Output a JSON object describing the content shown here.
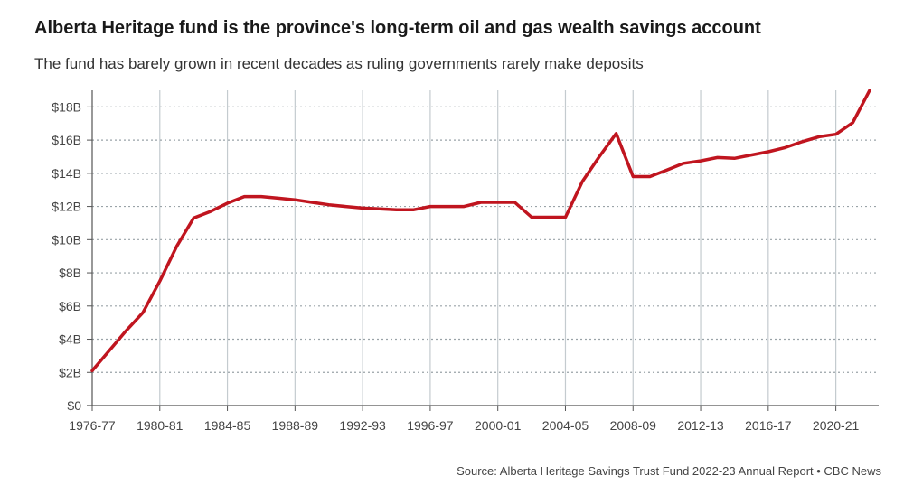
{
  "title": "Alberta Heritage fund is the province's long-term oil and gas wealth savings account",
  "subtitle": "The fund has barely grown in recent decades as ruling governments rarely make deposits",
  "source": "Source: Alberta Heritage Savings Trust Fund 2022-23 Annual Report • CBC News",
  "colors": {
    "line": "#c0151f",
    "grid_h": "#9aa3a8",
    "grid_v": "#c4cbcf",
    "axis": "#555555"
  },
  "chart_data": {
    "type": "line",
    "title": "Alberta Heritage fund is the province's long-term oil and gas wealth savings account",
    "subtitle": "The fund has barely grown in recent decades as ruling governments rarely make deposits",
    "xlabel": "",
    "ylabel": "",
    "ylim": [
      0,
      19
    ],
    "y_ticks": [
      0,
      2,
      4,
      6,
      8,
      10,
      12,
      14,
      16,
      18
    ],
    "y_tick_labels": [
      "$0",
      "$2B",
      "$4B",
      "$6B",
      "$8B",
      "$10B",
      "$12B",
      "$14B",
      "$16B",
      "$18B"
    ],
    "x_ticks": [
      "1976-77",
      "1980-81",
      "1984-85",
      "1988-89",
      "1992-93",
      "1996-97",
      "2000-01",
      "2004-05",
      "2008-09",
      "2012-13",
      "2016-17",
      "2020-21"
    ],
    "grid": true,
    "series": [
      {
        "values": [
          [
            "1976-77",
            2.1
          ],
          [
            "1977-78",
            3.3
          ],
          [
            "1978-79",
            4.5
          ],
          [
            "1979-80",
            5.6
          ],
          [
            "1980-81",
            7.5
          ],
          [
            "1981-82",
            9.6
          ],
          [
            "1982-83",
            11.3
          ],
          [
            "1983-84",
            11.7
          ],
          [
            "1984-85",
            12.2
          ],
          [
            "1985-86",
            12.6
          ],
          [
            "1986-87",
            12.6
          ],
          [
            "1987-88",
            12.5
          ],
          [
            "1988-89",
            12.4
          ],
          [
            "1989-90",
            12.25
          ],
          [
            "1990-91",
            12.1
          ],
          [
            "1991-92",
            12.0
          ],
          [
            "1992-93",
            11.9
          ],
          [
            "1993-94",
            11.85
          ],
          [
            "1994-95",
            11.8
          ],
          [
            "1995-96",
            11.8
          ],
          [
            "1996-97",
            12.0
          ],
          [
            "1997-98",
            12.0
          ],
          [
            "1998-99",
            12.0
          ],
          [
            "1999-00",
            12.25
          ],
          [
            "2000-01",
            12.25
          ],
          [
            "2001-02",
            12.25
          ],
          [
            "2002-03",
            11.35
          ],
          [
            "2003-04",
            11.35
          ],
          [
            "2004-05",
            11.35
          ],
          [
            "2005-06",
            13.5
          ],
          [
            "2006-07",
            15.0
          ],
          [
            "2007-08",
            16.4
          ],
          [
            "2008-09",
            13.8
          ],
          [
            "2009-10",
            13.8
          ],
          [
            "2010-11",
            14.2
          ],
          [
            "2011-12",
            14.6
          ],
          [
            "2012-13",
            14.75
          ],
          [
            "2013-14",
            14.95
          ],
          [
            "2014-15",
            14.9
          ],
          [
            "2015-16",
            15.1
          ],
          [
            "2016-17",
            15.3
          ],
          [
            "2017-18",
            15.55
          ],
          [
            "2018-19",
            15.9
          ],
          [
            "2019-20",
            16.2
          ],
          [
            "2020-21",
            16.35
          ],
          [
            "2021-22",
            17.05
          ],
          [
            "2022-23",
            19.0
          ]
        ]
      }
    ]
  }
}
